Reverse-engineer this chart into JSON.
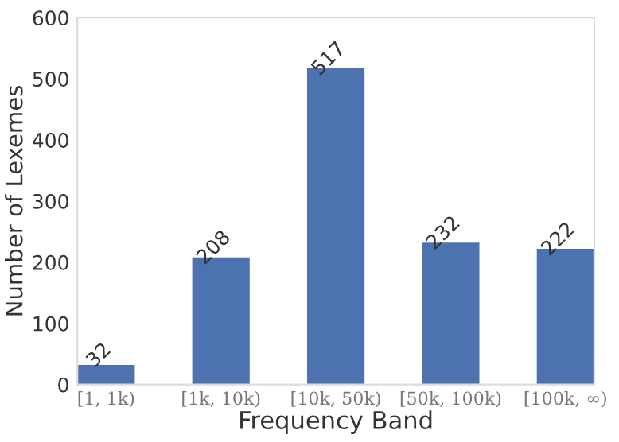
{
  "chart_data": {
    "type": "bar",
    "xlabel": "Frequency Band",
    "ylabel": "Number of Lexemes",
    "categories": [
      "[1, 1k)",
      "[1k, 10k)",
      "[10k, 50k)",
      "[50k, 100k)",
      "[100k, ∞)"
    ],
    "values": [
      32,
      208,
      517,
      232,
      222
    ],
    "color": "#4c72b0",
    "ylim": [
      0,
      600
    ],
    "yticks": [
      0,
      100,
      200,
      300,
      400,
      500,
      600
    ],
    "grid": false,
    "data_labels": true
  }
}
